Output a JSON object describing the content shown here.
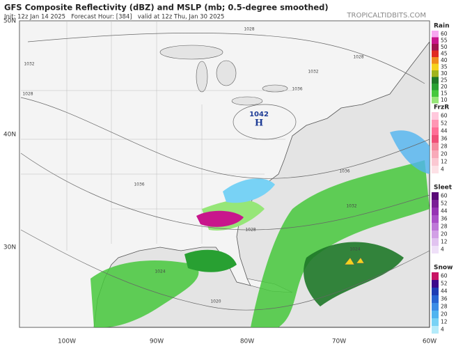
{
  "header": {
    "title": "GFS Composite Reflectivity (dBZ) and MSLP (mb; 0.5-degree smoothed)",
    "subtitle": "Init: 12z Jan 14 2025   Forecast Hour: [384]   valid at 12z Thu, Jan 30 2025",
    "watermark": "TROPICALTIDBITS.COM"
  },
  "map": {
    "lat_labels": [
      "50N",
      "40N",
      "30N"
    ],
    "lon_labels": [
      "100W",
      "90W",
      "80W",
      "70W",
      "60W"
    ],
    "high": {
      "pressure": "1042",
      "letter": "H"
    },
    "isobar_labels": [
      "1028",
      "1032",
      "1028",
      "1032",
      "1028",
      "1036",
      "1036",
      "1036",
      "1032",
      "1028",
      "1024",
      "1024",
      "1020"
    ]
  },
  "legends": [
    {
      "title": "Rain",
      "items": [
        {
          "label": 60,
          "color": "#f7a6f0"
        },
        {
          "label": 55,
          "color": "#c8168c"
        },
        {
          "label": 50,
          "color": "#a01450"
        },
        {
          "label": 45,
          "color": "#e02a20"
        },
        {
          "label": 40,
          "color": "#f08c1e"
        },
        {
          "label": 35,
          "color": "#f5d21e"
        },
        {
          "label": 30,
          "color": "#a0b41e"
        },
        {
          "label": 25,
          "color": "#1e7828"
        },
        {
          "label": 20,
          "color": "#28a032"
        },
        {
          "label": 15,
          "color": "#46c83c"
        },
        {
          "label": 10,
          "color": "#96e678"
        }
      ]
    },
    {
      "title": "FrzR",
      "items": [
        {
          "label": 60,
          "color": "#ffc8dc"
        },
        {
          "label": 52,
          "color": "#ff96b4"
        },
        {
          "label": 44,
          "color": "#ff6e96"
        },
        {
          "label": 36,
          "color": "#f05078"
        },
        {
          "label": 28,
          "color": "#f58ca0"
        },
        {
          "label": 20,
          "color": "#f8aab9"
        },
        {
          "label": 12,
          "color": "#fbc8d2"
        },
        {
          "label": 4,
          "color": "#fde1e6"
        }
      ]
    },
    {
      "title": "Sleet",
      "items": [
        {
          "label": 60,
          "color": "#5a0a78"
        },
        {
          "label": 52,
          "color": "#7a1e96"
        },
        {
          "label": 44,
          "color": "#9632b4"
        },
        {
          "label": 36,
          "color": "#aa50c8"
        },
        {
          "label": 28,
          "color": "#be78d8"
        },
        {
          "label": 20,
          "color": "#d2a0e6"
        },
        {
          "label": 12,
          "color": "#e1c3f0"
        },
        {
          "label": 4,
          "color": "#efe0f8"
        }
      ]
    },
    {
      "title": "Snow",
      "items": [
        {
          "label": 60,
          "color": "#c81464"
        },
        {
          "label": 52,
          "color": "#3c0a8c"
        },
        {
          "label": 44,
          "color": "#1e3cb4"
        },
        {
          "label": 36,
          "color": "#2864d2"
        },
        {
          "label": 28,
          "color": "#3c8ce6"
        },
        {
          "label": 20,
          "color": "#50b4f0"
        },
        {
          "label": 12,
          "color": "#78d2f5"
        },
        {
          "label": 4,
          "color": "#b4ebfa"
        }
      ]
    }
  ]
}
